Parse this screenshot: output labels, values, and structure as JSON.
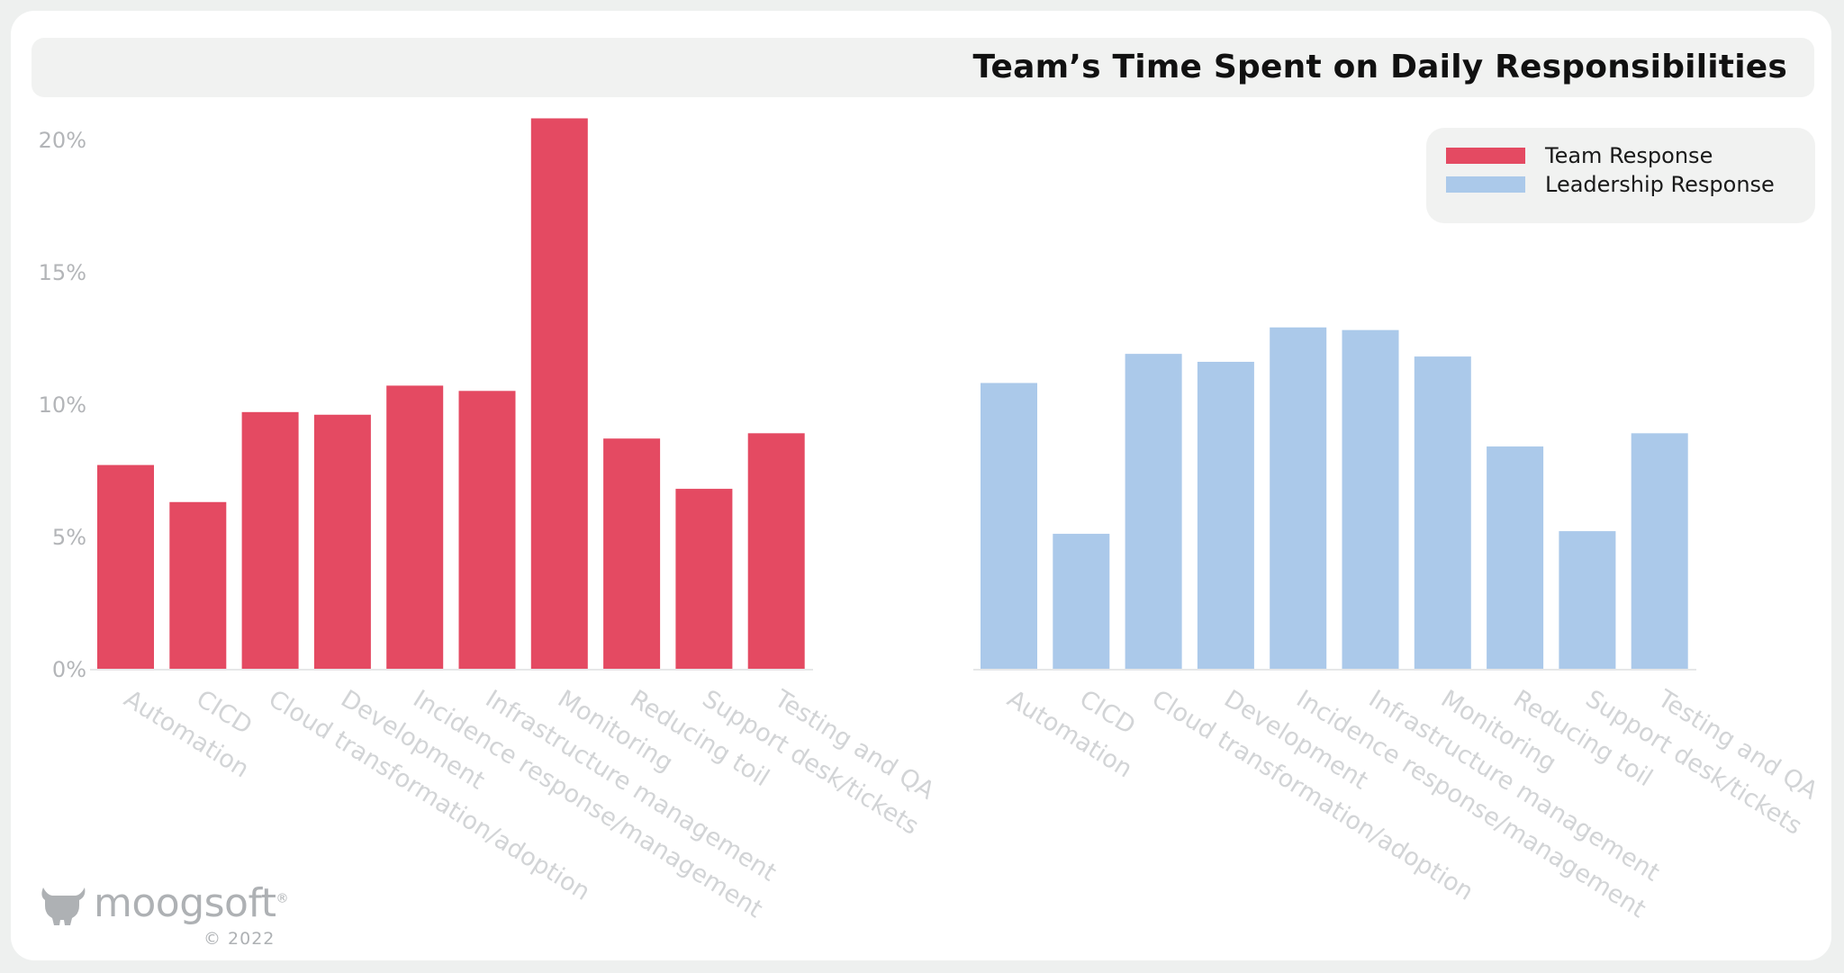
{
  "chart_data": {
    "type": "bar",
    "title": "Team’s Time Spent on Daily Responsibilities",
    "ylim": [
      0,
      20
    ],
    "yticks": [
      "0%",
      "5%",
      "10%",
      "15%",
      "20%"
    ],
    "ytick_values": [
      0,
      5,
      10,
      15,
      20
    ],
    "grid": false,
    "legend_position": "top-right",
    "categories": [
      "Automation",
      "CICD",
      "Cloud transformation/adoption",
      "Development",
      "Incidence response/management",
      "Infrastructure management",
      "Monitoring",
      "Reducing toil",
      "Support desk/tickets",
      "Testing and QA"
    ],
    "series": [
      {
        "name": "Team Response",
        "color": "#e44a62",
        "values": [
          7.7,
          6.3,
          9.7,
          9.6,
          10.7,
          10.5,
          20.8,
          8.7,
          6.8,
          8.9
        ]
      },
      {
        "name": "Leadership Response",
        "color": "#abc9ea",
        "values": [
          10.8,
          5.1,
          11.9,
          11.6,
          12.9,
          12.8,
          11.8,
          8.4,
          5.2,
          8.9
        ]
      }
    ]
  },
  "header": {
    "title": "Team’s Time Spent on Daily Responsibilities"
  },
  "legend": {
    "items": [
      {
        "label": "Team Response",
        "color": "#e44a62"
      },
      {
        "label": "Leadership Response",
        "color": "#abc9ea"
      }
    ]
  },
  "branding": {
    "logo_text": "moogsoft",
    "trademark": "®",
    "copyright": "© 2022"
  }
}
